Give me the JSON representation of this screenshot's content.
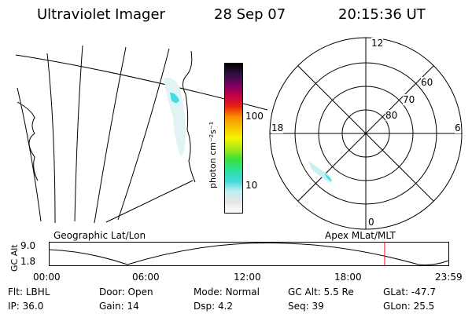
{
  "header": {
    "instrument": "Ultraviolet Imager",
    "date": "28 Sep 07",
    "time": "20:15:36 UT"
  },
  "colorbar": {
    "unit_label": "photon cm⁻²s⁻¹",
    "tick_100": "100",
    "tick_10": "10"
  },
  "polar_plot": {
    "mlt_labels": {
      "top": "12",
      "left": "18",
      "right": "6",
      "bottom": "0"
    },
    "lat_labels": [
      "60",
      "70",
      "80"
    ]
  },
  "orbit_panel": {
    "axis_label": "GC Alt",
    "y_top": "9.0",
    "y_bottom": "1.8",
    "left_title": "Geographic Lat/Lon",
    "right_title": "Apex MLat/MLT",
    "x_ticks": [
      "00:00",
      "06:00",
      "12:00",
      "18:00",
      "23:59"
    ]
  },
  "status": {
    "row1": [
      {
        "key": "Flt:",
        "val": "LBHL"
      },
      {
        "key": "Door:",
        "val": "Open"
      },
      {
        "key": "Mode:",
        "val": "Normal"
      },
      {
        "key": "GC Alt:",
        "val": "5.5 Re"
      },
      {
        "key": "GLat:",
        "val": "-47.7"
      }
    ],
    "row2": [
      {
        "key": "IP:",
        "val": "36.0"
      },
      {
        "key": "Gain:",
        "val": "14"
      },
      {
        "key": "Dsp:",
        "val": "4.2"
      },
      {
        "key": "Seq:",
        "val": "39"
      },
      {
        "key": "GLon:",
        "val": "25.5"
      }
    ]
  },
  "colors": {
    "colorbar_stops": [
      "#ffffff",
      "#e6e6e6",
      "#bfeef2",
      "#3fd8d8",
      "#2fe09a",
      "#3ae03a",
      "#a8e81a",
      "#f5f500",
      "#f7c200",
      "#f79000",
      "#e82010",
      "#c0004a",
      "#7a0060",
      "#301040",
      "#000000"
    ],
    "marker_line": "#ff0000",
    "aurora": "#40dde0"
  }
}
